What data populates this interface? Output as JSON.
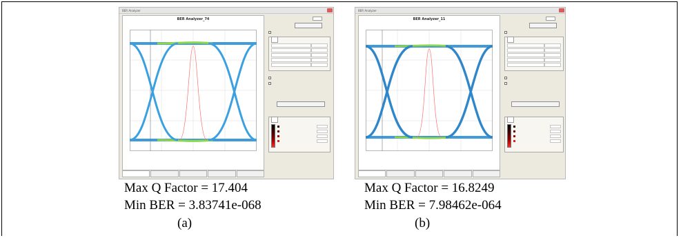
{
  "colors": {
    "eye_rail": "#2c8fd6",
    "eye_hot": "#8cd84a",
    "eye_cross": "#3aa0e0",
    "threshold": "#ff7070",
    "grid": "#cfcfcf",
    "background": "#ffffff",
    "frame_border": "#000000"
  },
  "panels": [
    {
      "id": "a",
      "window_title": "BER Analyzer",
      "plot_title": "BER Analyzer_74",
      "q_factor_text": "Max Q Factor = 17.404",
      "ber_text": "Min BER = 3.83741e-068",
      "label": "(a)"
    },
    {
      "id": "b",
      "window_title": "BER Analyzer",
      "plot_title": "BER Analyzer_11",
      "q_factor_text": "Max Q Factor = 16.8249",
      "ber_text": "Min BER = 7.98462e-064",
      "label": "(b)"
    }
  ]
}
